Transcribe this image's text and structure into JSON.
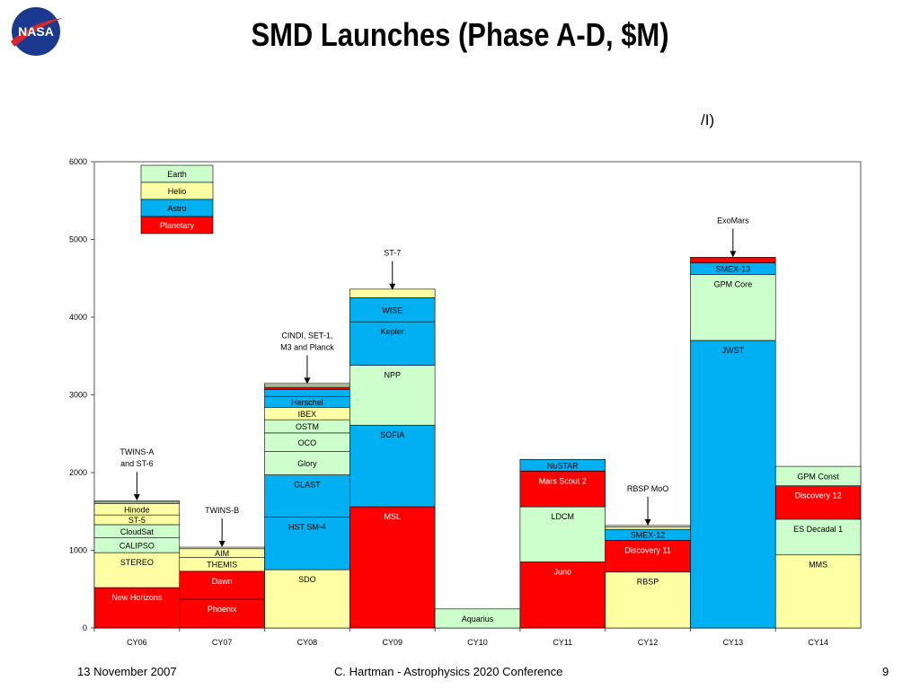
{
  "header": {
    "title": "SMD Launches (Phase A-D, $M)",
    "stray_text": "/I)"
  },
  "logo": {
    "text": "NASA",
    "colors": {
      "circle": "#1b3a8f",
      "stripe": "#d6272b"
    }
  },
  "footer": {
    "date": "13 November 2007",
    "center": "C. Hartman - Astrophysics 2020 Conference",
    "page": "9"
  },
  "chart_data": {
    "type": "bar",
    "stacked": true,
    "categories": [
      "CY06",
      "CY07",
      "CY08",
      "CY09",
      "CY10",
      "CY11",
      "CY12",
      "CY13",
      "CY14"
    ],
    "ylim": [
      0,
      6000
    ],
    "yticks": [
      0,
      1000,
      2000,
      3000,
      4000,
      5000,
      6000
    ],
    "grid": false,
    "legend_position": "top-left",
    "legend": [
      {
        "name": "Earth",
        "color": "#ccffcc"
      },
      {
        "name": "Helio",
        "color": "#ffffa3"
      },
      {
        "name": "Astro",
        "color": "#00b0f0"
      },
      {
        "name": "Planetary",
        "color": "#ff0000"
      }
    ],
    "stacks": [
      {
        "category": "CY06",
        "segments": [
          {
            "label": "New Horizons",
            "value": 520,
            "color": "#ff0000"
          },
          {
            "label": "STEREO",
            "value": 450,
            "color": "#ffffa3"
          },
          {
            "label": "CALIPSO",
            "value": 190,
            "color": "#ccffcc"
          },
          {
            "label": "CloudSat",
            "value": 170,
            "color": "#ccffcc"
          },
          {
            "label": "ST-5",
            "value": 125,
            "color": "#ffffa3"
          },
          {
            "label": "Hinode",
            "value": 145,
            "color": "#ffffa3"
          },
          {
            "label": "",
            "value": 20,
            "color": "#ffffa3"
          },
          {
            "label": "",
            "value": 15,
            "color": "#ccffcc"
          }
        ]
      },
      {
        "category": "CY07",
        "segments": [
          {
            "label": "Phoenix",
            "value": 370,
            "color": "#ff0000"
          },
          {
            "label": "Dawn",
            "value": 360,
            "color": "#ff0000"
          },
          {
            "label": "THEMIS",
            "value": 180,
            "color": "#ffffa3"
          },
          {
            "label": "AIM",
            "value": 110,
            "color": "#ffffa3"
          },
          {
            "label": "",
            "value": 20,
            "color": "#ffffa3"
          }
        ]
      },
      {
        "category": "CY08",
        "segments": [
          {
            "label": "SDO",
            "value": 750,
            "color": "#ffffa3"
          },
          {
            "label": "HST SM-4",
            "value": 680,
            "color": "#00b0f0"
          },
          {
            "label": "GLAST",
            "value": 540,
            "color": "#00b0f0"
          },
          {
            "label": "Glory",
            "value": 300,
            "color": "#ccffcc"
          },
          {
            "label": "OCO",
            "value": 240,
            "color": "#ccffcc"
          },
          {
            "label": "OSTM",
            "value": 170,
            "color": "#ccffcc"
          },
          {
            "label": "IBEX",
            "value": 160,
            "color": "#ffffa3"
          },
          {
            "label": "Herschel",
            "value": 140,
            "color": "#00b0f0"
          },
          {
            "label": "",
            "value": 90,
            "color": "#00b0f0"
          },
          {
            "label": "",
            "value": 30,
            "color": "#ff0000"
          },
          {
            "label": "",
            "value": 25,
            "color": "#ccffcc"
          },
          {
            "label": "",
            "value": 25,
            "color": "#ffffa3"
          }
        ]
      },
      {
        "category": "CY09",
        "segments": [
          {
            "label": "MSL",
            "value": 1560,
            "color": "#ff0000"
          },
          {
            "label": "SOFIA",
            "value": 1050,
            "color": "#00b0f0"
          },
          {
            "label": "NPP",
            "value": 770,
            "color": "#ccffcc"
          },
          {
            "label": "Kepler",
            "value": 560,
            "color": "#00b0f0"
          },
          {
            "label": "WISE",
            "value": 310,
            "color": "#00b0f0"
          },
          {
            "label": "",
            "value": 110,
            "color": "#ffffa3"
          }
        ]
      },
      {
        "category": "CY10",
        "segments": [
          {
            "label": "Aquarius",
            "value": 245,
            "color": "#ccffcc"
          }
        ]
      },
      {
        "category": "CY11",
        "segments": [
          {
            "label": "Juno",
            "value": 850,
            "color": "#ff0000"
          },
          {
            "label": "LDCM",
            "value": 710,
            "color": "#ccffcc"
          },
          {
            "label": "Mars Scout 2",
            "value": 460,
            "color": "#ff0000"
          },
          {
            "label": "NuSTAR",
            "value": 150,
            "color": "#00b0f0"
          }
        ]
      },
      {
        "category": "CY12",
        "segments": [
          {
            "label": "RBSP",
            "value": 720,
            "color": "#ffffa3"
          },
          {
            "label": "Discovery 11",
            "value": 410,
            "color": "#ff0000"
          },
          {
            "label": "SMEX-12",
            "value": 140,
            "color": "#00b0f0"
          },
          {
            "label": "",
            "value": 30,
            "color": "#ffffa3"
          },
          {
            "label": "",
            "value": 20,
            "color": "#ffffa3"
          }
        ]
      },
      {
        "category": "CY13",
        "segments": [
          {
            "label": "JWST",
            "value": 3700,
            "color": "#00b0f0"
          },
          {
            "label": "GPM Core",
            "value": 850,
            "color": "#ccffcc"
          },
          {
            "label": "SMEX-13",
            "value": 150,
            "color": "#00b0f0"
          },
          {
            "label": "",
            "value": 70,
            "color": "#ff0000"
          }
        ]
      },
      {
        "category": "CY14",
        "segments": [
          {
            "label": "MMS",
            "value": 940,
            "color": "#ffffa3"
          },
          {
            "label": "ES Decadal 1",
            "value": 460,
            "color": "#ccffcc"
          },
          {
            "label": "Discovery 12",
            "value": 430,
            "color": "#ff0000"
          },
          {
            "label": "GPM Const",
            "value": 250,
            "color": "#ccffcc"
          }
        ]
      }
    ],
    "annotations": [
      {
        "text": [
          "TWINS-A",
          "and ST-6"
        ],
        "category": "CY06",
        "arrow_to": 1640
      },
      {
        "text": [
          "TWINS-B"
        ],
        "category": "CY07",
        "arrow_to": 1040
      },
      {
        "text": [
          "CINDI, SET-1,",
          "M3 and Planck"
        ],
        "category": "CY08",
        "arrow_to": 3140
      },
      {
        "text": [
          "ST-7"
        ],
        "category": "CY09",
        "arrow_to": 4350
      },
      {
        "text": [
          "RBSP MoO"
        ],
        "category": "CY12",
        "arrow_to": 1320
      },
      {
        "text": [
          "ExoMars"
        ],
        "category": "CY13",
        "arrow_to": 4770
      }
    ]
  }
}
